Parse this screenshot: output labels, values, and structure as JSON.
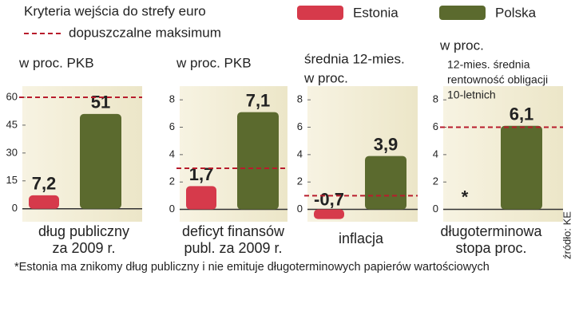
{
  "title": "Kryteria wejścia do strefy euro",
  "reference_label": "dopuszczalne maksimum",
  "legend": [
    {
      "name": "Estonia",
      "color": "#d63a4b"
    },
    {
      "name": "Polska",
      "color": "#5b6a2e"
    }
  ],
  "chart_data": [
    {
      "type": "bar",
      "subtitle_lines": [
        "w proc. PKB"
      ],
      "xlabel_lines": [
        "dług publiczny",
        "za 2009 r."
      ],
      "values": [
        7.2,
        51
      ],
      "value_labels": [
        "7,2",
        "51"
      ],
      "reference": 60,
      "ylim": [
        -7,
        66
      ],
      "yticks": [
        0,
        15,
        30,
        45,
        60
      ]
    },
    {
      "type": "bar",
      "subtitle_lines": [
        "w proc. PKB"
      ],
      "xlabel_lines": [
        "deficyt finansów",
        "publ. za 2009 r."
      ],
      "values": [
        1.7,
        7.1
      ],
      "value_labels": [
        "1,7",
        "7,1"
      ],
      "reference": 3,
      "ylim": [
        -0.9,
        9
      ],
      "yticks": [
        0,
        2,
        4,
        6,
        8
      ]
    },
    {
      "type": "bar",
      "subtitle_lines": [
        "średnia 12-mies.",
        "w proc."
      ],
      "xlabel_lines": [
        "inflacja"
      ],
      "values": [
        -0.7,
        3.9
      ],
      "value_labels": [
        "-0,7",
        "3,9"
      ],
      "reference": 1,
      "ylim": [
        -0.9,
        9
      ],
      "yticks": [
        0,
        2,
        4,
        6,
        8
      ]
    },
    {
      "type": "bar",
      "subtitle_lines": [
        "w proc."
      ],
      "annotation_lines": [
        "12-mies. średnia",
        "rentowność obligacji",
        "10-letnich"
      ],
      "xlabel_lines": [
        "długoterminowa",
        "stopa proc."
      ],
      "values": [
        null,
        6.1
      ],
      "value_labels": [
        "*",
        "6,1"
      ],
      "reference": 6,
      "ylim": [
        -0.9,
        9
      ],
      "yticks": [
        0,
        2,
        4,
        6,
        8
      ]
    }
  ],
  "footnote": "*Estonia ma znikomy dług publiczny i nie emituje długoterminowych papierów wartościowych",
  "source": "źródło: KE"
}
